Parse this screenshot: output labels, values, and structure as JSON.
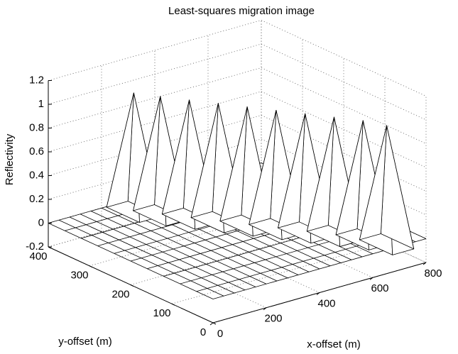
{
  "chart_data": {
    "type": "mesh3d",
    "title": "Least-squares migration image",
    "xlabel": "x-offset (m)",
    "ylabel": "y-offset (m)",
    "zlabel": "Reflectivity",
    "xlim": [
      0,
      800
    ],
    "xticks": [
      0,
      200,
      400,
      600,
      800
    ],
    "ylim": [
      0,
      400
    ],
    "yticks": [
      0,
      100,
      200,
      300,
      400
    ],
    "zlim": [
      -0.2,
      1.2
    ],
    "zticks": [
      -0.2,
      0,
      0.2,
      0.4,
      0.6,
      0.8,
      1,
      1.2
    ],
    "grid": true,
    "spikes": {
      "x": [
        256,
        300,
        350,
        400,
        450,
        500,
        550,
        600,
        650,
        680
      ],
      "y": [
        358,
        322,
        284,
        246,
        208,
        170,
        132,
        94,
        56,
        18
      ],
      "values": [
        1,
        1,
        1,
        1,
        1,
        1,
        1,
        1,
        1,
        1
      ]
    }
  }
}
